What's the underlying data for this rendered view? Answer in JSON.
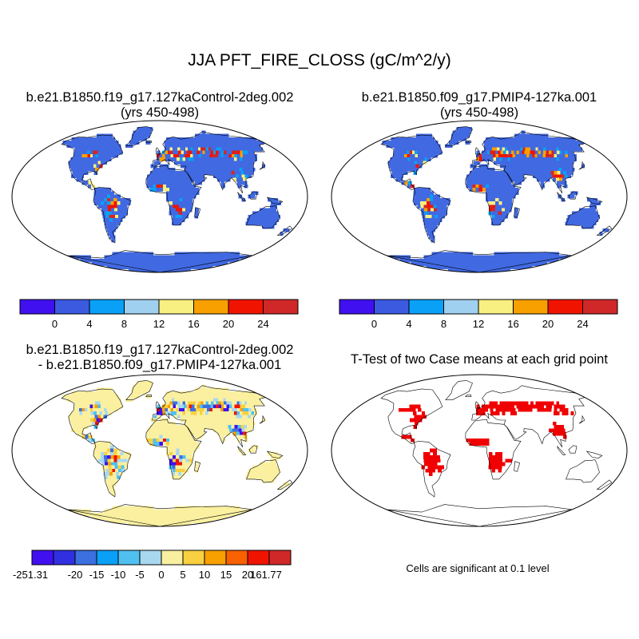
{
  "title": "JJA PFT_FIRE_CLOSS (gC/m^2/y)",
  "panels": [
    {
      "id": "control",
      "title_line1": "b.e21.B1850.f19_g17.127kaControl-2deg.002",
      "title_line2": "(yrs 450-498)"
    },
    {
      "id": "pmip4",
      "title_line1": "b.e21.B1850.f09_g17.PMIP4-127ka.001",
      "title_line2": "(yrs 450-498)"
    },
    {
      "id": "difference",
      "title_line1": "b.e21.B1850.f19_g17.127kaControl-2deg.002",
      "title_line2": "- b.e21.B1850.f09_g17.PMIP4-127ka.001"
    },
    {
      "id": "ttest",
      "title_line1": "T-Test of two Case means at each grid point",
      "title_line2": ""
    }
  ],
  "colorbar_main": {
    "colors": [
      "#4010f0",
      "#3c5ae0",
      "#0aa0f8",
      "#a0d0f0",
      "#f8f080",
      "#f8a000",
      "#f01400",
      "#d02828"
    ],
    "labels": [
      "0",
      "4",
      "8",
      "12",
      "16",
      "20",
      "24"
    ]
  },
  "colorbar_diff": {
    "colors": [
      "#4010f0",
      "#3030e0",
      "#3c70e0",
      "#0aa0f8",
      "#50c0f0",
      "#a8d8f0",
      "#f8f0a0",
      "#f8d040",
      "#f8a000",
      "#f86000",
      "#f01400",
      "#d02828"
    ],
    "labels": [
      "-251.31",
      "-20",
      "-15",
      "-10",
      "-5",
      "0",
      "5",
      "10",
      "15",
      "20",
      "161.77"
    ]
  },
  "significance_note": "Cells are significant at 0.1 level",
  "map_colors": {
    "ocean": "#ffffff",
    "land_main": "#4169e1",
    "land_diff": "#faf0a0",
    "significant": "#f00000"
  }
}
